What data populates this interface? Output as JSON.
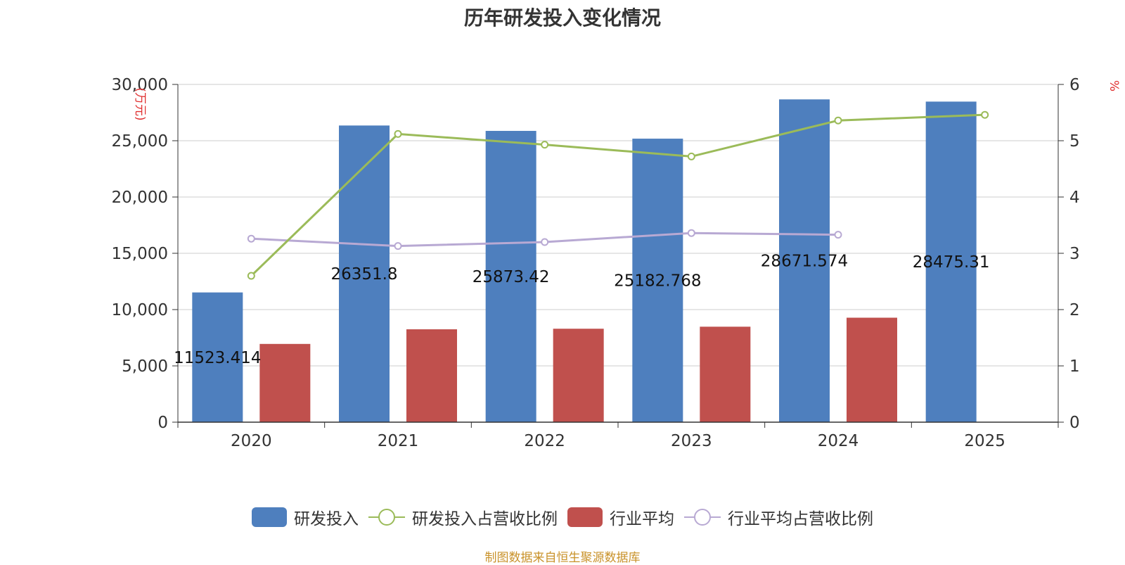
{
  "title": "历年研发投入变化情况",
  "source": "制图数据来自恒生聚源数据库",
  "colors": {
    "rd_bar": "#4e7fbe",
    "industry_bar": "#c0504d",
    "rd_ratio_line": "#9bbb59",
    "industry_ratio_line": "#b8a9d3",
    "axis_unit": "#e03030",
    "grid": "#cccccc",
    "source": "#c9922a"
  },
  "legend": [
    {
      "label": "研发投入",
      "type": "bar",
      "color": "#4e7fbe"
    },
    {
      "label": "研发投入占营收比例",
      "type": "line",
      "color": "#9bbb59"
    },
    {
      "label": "行业平均",
      "type": "bar",
      "color": "#c0504d"
    },
    {
      "label": "行业平均占营收比例",
      "type": "line",
      "color": "#b8a9d3"
    }
  ],
  "chart_data": {
    "type": "bar",
    "title": "历年研发投入变化情况",
    "categories": [
      "2020",
      "2021",
      "2022",
      "2023",
      "2024",
      "2025"
    ],
    "y_left": {
      "label": "(万元)",
      "range": [
        0,
        30000
      ],
      "ticks": [
        "0",
        "5,000",
        "10,000",
        "15,000",
        "20,000",
        "25,000",
        "30,000"
      ]
    },
    "y_right": {
      "label": "%",
      "range": [
        0,
        6
      ],
      "ticks": [
        "0",
        "1",
        "2",
        "3",
        "4",
        "5",
        "6"
      ]
    },
    "grid": true,
    "legend_position": "bottom",
    "series": [
      {
        "name": "研发投入",
        "type": "bar",
        "axis": "left",
        "values": [
          11523.414,
          26351.8,
          25873.42,
          25182.768,
          28671.574,
          28475.31
        ],
        "labels": [
          "11523.414",
          "26351.8",
          "25873.42",
          "25182.768",
          "28671.574",
          "28475.31"
        ]
      },
      {
        "name": "行业平均",
        "type": "bar",
        "axis": "left",
        "values": [
          6950,
          8250,
          8300,
          8480,
          9280,
          null
        ]
      },
      {
        "name": "研发投入占营收比例",
        "type": "line",
        "axis": "right",
        "values": [
          2.6,
          5.12,
          4.93,
          4.72,
          5.36,
          5.46
        ]
      },
      {
        "name": "行业平均占营收比例",
        "type": "line",
        "axis": "right",
        "values": [
          3.26,
          3.13,
          3.2,
          3.36,
          3.33,
          null
        ]
      }
    ]
  }
}
